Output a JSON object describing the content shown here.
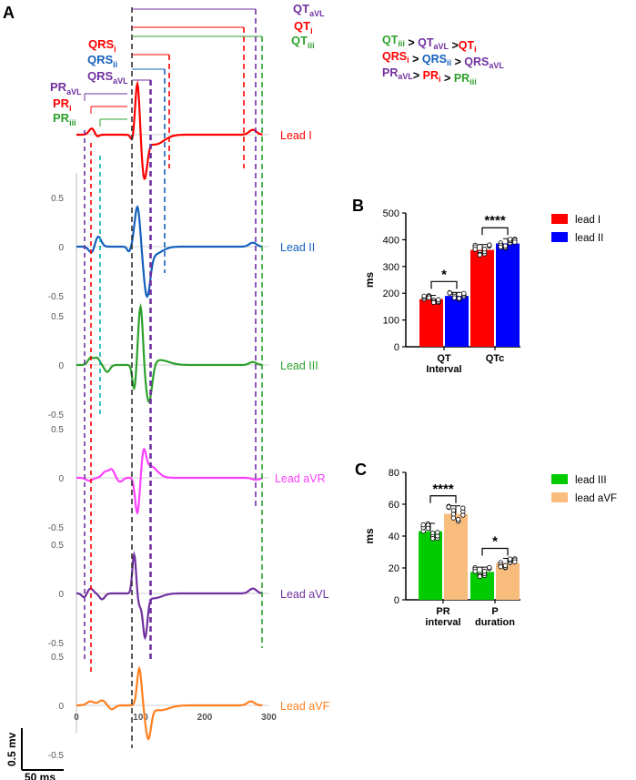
{
  "panel_labels": {
    "a": "A",
    "b": "B",
    "c": "C"
  },
  "colors": {
    "lead_I": "#ff0000",
    "lead_II": "#1560bd",
    "lead_III": "#2ca02c",
    "lead_aVR": "#ff40ff",
    "lead_aVL": "#7030a0",
    "lead_aVF": "#ff7f1f",
    "bar_lead_I": "#ff0000",
    "bar_lead_II": "#0000ff",
    "bar_lead_III": "#00cc00",
    "bar_lead_aVF": "#f8bd7d",
    "cyan_marker": "#00b0b0"
  },
  "comparisons": [
    [
      {
        "base": "QT",
        "sub": "iii",
        "color": "lead_III"
      },
      {
        "op": " > "
      },
      {
        "base": "QT",
        "sub": "aVL",
        "color": "lead_aVL"
      },
      {
        "op": " >"
      },
      {
        "base": "QT",
        "sub": "i",
        "color": "lead_I"
      }
    ],
    [
      {
        "base": "QRS",
        "sub": "i",
        "color": "lead_I"
      },
      {
        "op": " > "
      },
      {
        "base": "QRS",
        "sub": "ii",
        "color": "lead_II"
      },
      {
        "op": " > "
      },
      {
        "base": "QRS",
        "sub": "aVL",
        "color": "lead_aVL"
      }
    ],
    [
      {
        "base": "PR",
        "sub": "aVL",
        "color": "lead_aVL"
      },
      {
        "op": "> "
      },
      {
        "base": "PR",
        "sub": "i",
        "color": "lead_I"
      },
      {
        "op": " > "
      },
      {
        "base": "PR",
        "sub": "iii",
        "color": "lead_III"
      }
    ]
  ],
  "chart_data": [
    {
      "id": "A",
      "type": "line",
      "title": "",
      "x_ticks": [
        0,
        100,
        200,
        300
      ],
      "y_ticks": [
        0.5,
        0,
        -0.5
      ],
      "xlim": [
        0,
        300
      ],
      "ylim": [
        -0.5,
        0.5
      ],
      "scale_bar": {
        "vertical": "0.5 mv",
        "horizontal": "50 ms"
      },
      "leads": [
        {
          "name": "Lead I",
          "color": "lead_I"
        },
        {
          "name": "Lead II",
          "color": "lead_II"
        },
        {
          "name": "Lead III",
          "color": "lead_III"
        },
        {
          "name": "Lead aVR",
          "color": "lead_aVR"
        },
        {
          "name": "Lead aVL",
          "color": "lead_aVL"
        },
        {
          "name": "Lead aVF",
          "color": "lead_aVF"
        }
      ],
      "brackets": [
        {
          "base": "QT",
          "sub": "aVL",
          "color": "lead_aVL"
        },
        {
          "base": "QT",
          "sub": "i",
          "color": "lead_I"
        },
        {
          "base": "QT",
          "sub": "iii",
          "color": "lead_III"
        },
        {
          "base": "QRS",
          "sub": "i",
          "color": "lead_I"
        },
        {
          "base": "QRS",
          "sub": "ii",
          "color": "lead_II"
        },
        {
          "base": "QRS",
          "sub": "aVL",
          "color": "lead_aVL"
        },
        {
          "base": "PR",
          "sub": "aVL",
          "color": "lead_aVL"
        },
        {
          "base": "PR",
          "sub": "i",
          "color": "lead_I"
        },
        {
          "base": "PR",
          "sub": "iii",
          "color": "lead_III"
        }
      ]
    },
    {
      "id": "B",
      "type": "bar",
      "title": "",
      "xlabel": "",
      "ylabel": "ms",
      "ylim": [
        0,
        500
      ],
      "y_ticks": [
        0,
        100,
        200,
        300,
        400,
        500
      ],
      "categories": [
        "QT\nInterval",
        "QTc"
      ],
      "series": [
        {
          "name": "lead I",
          "color": "bar_lead_I",
          "values": [
            178,
            362
          ],
          "errors": [
            14,
            20
          ]
        },
        {
          "name": "lead II",
          "color": "bar_lead_II",
          "values": [
            190,
            386
          ],
          "errors": [
            13,
            18
          ]
        }
      ],
      "significance": [
        "*",
        "****"
      ],
      "legend_position": "top-right"
    },
    {
      "id": "C",
      "type": "bar",
      "title": "",
      "xlabel": "",
      "ylabel": "ms",
      "ylim": [
        0,
        80
      ],
      "y_ticks": [
        0,
        20,
        40,
        60,
        80
      ],
      "categories": [
        "PR\ninterval",
        "P\nduration"
      ],
      "series": [
        {
          "name": "lead III",
          "color": "bar_lead_III",
          "values": [
            43,
            17.5
          ],
          "errors": [
            5,
            3
          ]
        },
        {
          "name": "lead aVF",
          "color": "bar_lead_aVF",
          "values": [
            54,
            23
          ],
          "errors": [
            5,
            3
          ]
        }
      ],
      "significance": [
        "****",
        "*"
      ],
      "legend_position": "top-right"
    }
  ]
}
